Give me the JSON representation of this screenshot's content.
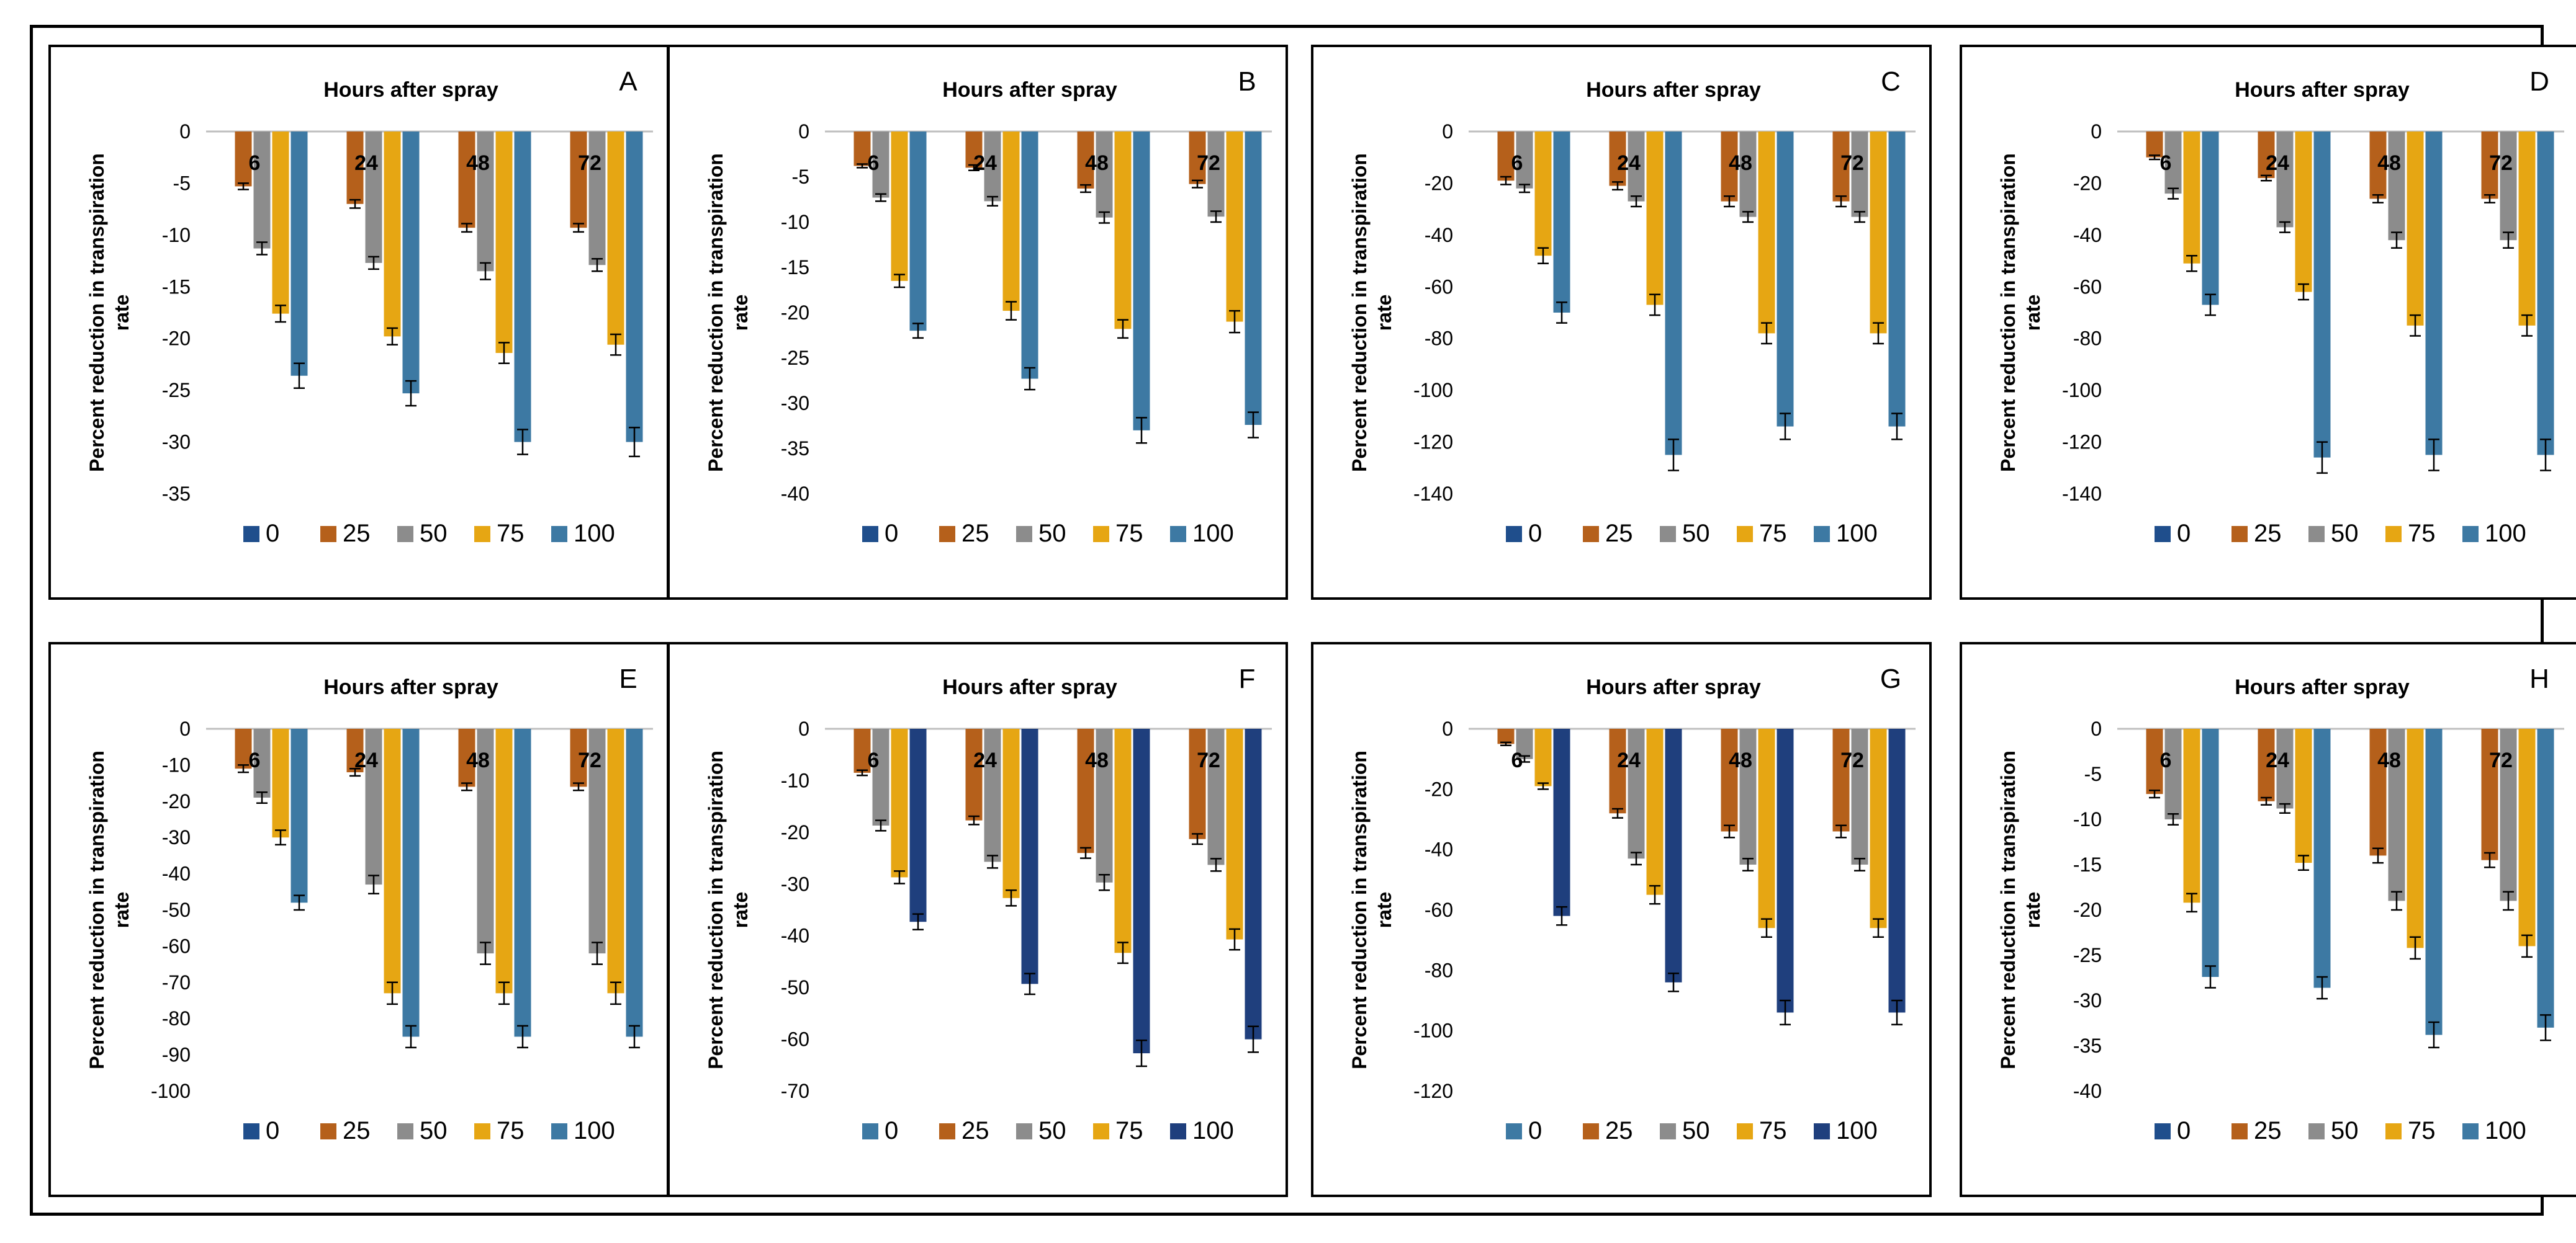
{
  "legend_levels": [
    "0",
    "25",
    "50",
    "75",
    "100"
  ],
  "palettes": {
    "standard": [
      "#1f4e8c",
      "#b5601b",
      "#8c8c8c",
      "#e6a613",
      "#3d79a3"
    ],
    "dark_last": [
      "#3d79a3",
      "#b5601b",
      "#8c8c8c",
      "#e6a613",
      "#1f3f7d"
    ]
  },
  "chart_data": [
    {
      "panel": "A",
      "type": "bar",
      "title": "Hours after spray",
      "xlabel": "",
      "ylabel": "Percent reduction in transpiration rate",
      "categories": [
        "6",
        "24",
        "48",
        "72"
      ],
      "ylim": [
        -35,
        0
      ],
      "yticks": [
        0,
        -5,
        -10,
        -15,
        -20,
        -25,
        -30,
        -35
      ],
      "palette": "standard",
      "series": [
        {
          "name": "0",
          "values": [
            0,
            0,
            0,
            0
          ],
          "errors": [
            0,
            0,
            0,
            0
          ]
        },
        {
          "name": "25",
          "values": [
            -5.3,
            -7,
            -9.3,
            -9.3
          ],
          "errors": [
            0.3,
            0.4,
            0.4,
            0.4
          ]
        },
        {
          "name": "50",
          "values": [
            -11.3,
            -12.7,
            -13.5,
            -12.9
          ],
          "errors": [
            0.6,
            0.6,
            0.8,
            0.6
          ]
        },
        {
          "name": "75",
          "values": [
            -17.6,
            -19.8,
            -21.4,
            -20.6
          ],
          "errors": [
            0.8,
            0.8,
            1.0,
            1.0
          ]
        },
        {
          "name": "100",
          "values": [
            -23.6,
            -25.3,
            -30,
            -30
          ],
          "errors": [
            1.2,
            1.2,
            1.2,
            1.4
          ]
        }
      ]
    },
    {
      "panel": "B",
      "type": "bar",
      "title": "Hours after spray",
      "xlabel": "",
      "ylabel": "Percent reduction in transpiration rate",
      "categories": [
        "6",
        "24",
        "48",
        "72"
      ],
      "ylim": [
        -40,
        0
      ],
      "yticks": [
        0,
        -5,
        -10,
        -15,
        -20,
        -25,
        -30,
        -35,
        -40
      ],
      "palette": "standard",
      "series": [
        {
          "name": "0",
          "values": [
            0,
            0,
            0,
            0
          ],
          "errors": [
            0,
            0,
            0,
            0
          ]
        },
        {
          "name": "25",
          "values": [
            -3.8,
            -4,
            -6.3,
            -5.8
          ],
          "errors": [
            0.2,
            0.3,
            0.4,
            0.4
          ]
        },
        {
          "name": "50",
          "values": [
            -7.3,
            -7.7,
            -9.5,
            -9.4
          ],
          "errors": [
            0.4,
            0.5,
            0.6,
            0.6
          ]
        },
        {
          "name": "75",
          "values": [
            -16.5,
            -19.8,
            -21.8,
            -21
          ],
          "errors": [
            0.7,
            1.0,
            1.0,
            1.2
          ]
        },
        {
          "name": "100",
          "values": [
            -22,
            -27.3,
            -33,
            -32.4
          ],
          "errors": [
            0.8,
            1.2,
            1.4,
            1.4
          ]
        }
      ]
    },
    {
      "panel": "C",
      "type": "bar",
      "title": "Hours after spray",
      "xlabel": "",
      "ylabel": "Percent reduction in transpiration rate",
      "categories": [
        "6",
        "24",
        "48",
        "72"
      ],
      "ylim": [
        -140,
        0
      ],
      "yticks": [
        0,
        -20,
        -40,
        -60,
        -80,
        -100,
        -120,
        -140
      ],
      "palette": "standard",
      "series": [
        {
          "name": "0",
          "values": [
            0,
            0,
            0,
            0
          ],
          "errors": [
            0,
            0,
            0,
            0
          ]
        },
        {
          "name": "25",
          "values": [
            -19,
            -21,
            -27,
            -27
          ],
          "errors": [
            1.5,
            1.5,
            2,
            2
          ]
        },
        {
          "name": "50",
          "values": [
            -22,
            -27,
            -33,
            -33
          ],
          "errors": [
            1.5,
            2,
            2,
            2
          ]
        },
        {
          "name": "75",
          "values": [
            -48,
            -67,
            -78,
            -78
          ],
          "errors": [
            3,
            4,
            4,
            4
          ]
        },
        {
          "name": "100",
          "values": [
            -70,
            -125,
            -114,
            -114
          ],
          "errors": [
            4,
            6,
            5,
            5
          ]
        }
      ]
    },
    {
      "panel": "D",
      "type": "bar",
      "title": "Hours after spray",
      "xlabel": "",
      "ylabel": "Percent reduction in transpiration rate",
      "categories": [
        "6",
        "24",
        "48",
        "72"
      ],
      "ylim": [
        -140,
        0
      ],
      "yticks": [
        0,
        -20,
        -40,
        -60,
        -80,
        -100,
        -120,
        -140
      ],
      "palette": "standard",
      "series": [
        {
          "name": "0",
          "values": [
            0,
            0,
            0,
            0
          ],
          "errors": [
            0,
            0,
            0,
            0
          ]
        },
        {
          "name": "25",
          "values": [
            -10,
            -18,
            -26,
            -26
          ],
          "errors": [
            0.8,
            1,
            1.5,
            1.5
          ]
        },
        {
          "name": "50",
          "values": [
            -24,
            -37,
            -42,
            -42
          ],
          "errors": [
            2,
            2,
            3,
            3
          ]
        },
        {
          "name": "75",
          "values": [
            -51,
            -62,
            -75,
            -75
          ],
          "errors": [
            3,
            3,
            4,
            4
          ]
        },
        {
          "name": "100",
          "values": [
            -67,
            -126,
            -125,
            -125
          ],
          "errors": [
            4,
            6,
            6,
            6
          ]
        }
      ]
    },
    {
      "panel": "E",
      "type": "bar",
      "title": "Hours after spray",
      "xlabel": "",
      "ylabel": "Percent reduction in transpiration rate",
      "categories": [
        "6",
        "24",
        "48",
        "72"
      ],
      "ylim": [
        -100,
        0
      ],
      "yticks": [
        0,
        -10,
        -20,
        -30,
        -40,
        -50,
        -60,
        -70,
        -80,
        -90,
        -100
      ],
      "palette": "standard",
      "series": [
        {
          "name": "0",
          "values": [
            0,
            0,
            0,
            0
          ],
          "errors": [
            0,
            0,
            0,
            0
          ]
        },
        {
          "name": "25",
          "values": [
            -11,
            -12,
            -16,
            -16
          ],
          "errors": [
            1,
            1,
            1,
            1
          ]
        },
        {
          "name": "50",
          "values": [
            -19,
            -43,
            -62,
            -62
          ],
          "errors": [
            1.5,
            2.5,
            3,
            3
          ]
        },
        {
          "name": "75",
          "values": [
            -30,
            -73,
            -73,
            -73
          ],
          "errors": [
            2,
            3,
            3,
            3
          ]
        },
        {
          "name": "100",
          "values": [
            -48,
            -85,
            -85,
            -85
          ],
          "errors": [
            2,
            3,
            3,
            3
          ]
        }
      ]
    },
    {
      "panel": "F",
      "type": "bar",
      "title": "Hours after spray",
      "xlabel": "",
      "ylabel": "Percent reduction in transpiration rate",
      "categories": [
        "6",
        "24",
        "48",
        "72"
      ],
      "ylim": [
        -70,
        0
      ],
      "yticks": [
        0,
        -10,
        -20,
        -30,
        -40,
        -50,
        -60,
        -70
      ],
      "palette": "dark_last",
      "series": [
        {
          "name": "0",
          "values": [
            0,
            0,
            0,
            0
          ],
          "errors": [
            0,
            0,
            0,
            0
          ]
        },
        {
          "name": "25",
          "values": [
            -8.5,
            -17.7,
            -24,
            -21.3
          ],
          "errors": [
            0.5,
            0.8,
            1,
            1
          ]
        },
        {
          "name": "50",
          "values": [
            -18.7,
            -25.7,
            -29.7,
            -26.3
          ],
          "errors": [
            1,
            1.2,
            1.5,
            1.2
          ]
        },
        {
          "name": "75",
          "values": [
            -28.7,
            -32.7,
            -43.3,
            -40.7
          ],
          "errors": [
            1.2,
            1.5,
            2,
            2
          ]
        },
        {
          "name": "100",
          "values": [
            -37.3,
            -49.3,
            -62.7,
            -60
          ],
          "errors": [
            1.5,
            2,
            2.5,
            2.5
          ]
        }
      ]
    },
    {
      "panel": "G",
      "type": "bar",
      "title": "Hours after spray",
      "xlabel": "",
      "ylabel": "Percent reduction in transpiration rate",
      "categories": [
        "6",
        "24",
        "48",
        "72"
      ],
      "ylim": [
        -120,
        0
      ],
      "yticks": [
        0,
        -20,
        -40,
        -60,
        -80,
        -100,
        -120
      ],
      "palette": "dark_last",
      "series": [
        {
          "name": "0",
          "values": [
            0,
            0,
            0,
            0
          ],
          "errors": [
            0,
            0,
            0,
            0
          ]
        },
        {
          "name": "25",
          "values": [
            -5,
            -28,
            -34,
            -34
          ],
          "errors": [
            0.5,
            1.5,
            2,
            2
          ]
        },
        {
          "name": "50",
          "values": [
            -10,
            -43,
            -45,
            -45
          ],
          "errors": [
            1,
            2,
            2,
            2
          ]
        },
        {
          "name": "75",
          "values": [
            -19,
            -55,
            -66,
            -66
          ],
          "errors": [
            1,
            3,
            3,
            3
          ]
        },
        {
          "name": "100",
          "values": [
            -62,
            -84,
            -94,
            -94
          ],
          "errors": [
            3,
            3,
            4,
            4
          ]
        }
      ]
    },
    {
      "panel": "H",
      "type": "bar",
      "title": "Hours after spray",
      "xlabel": "",
      "ylabel": "Percent reduction in transpiration rate",
      "categories": [
        "6",
        "24",
        "48",
        "72"
      ],
      "ylim": [
        -40,
        0
      ],
      "yticks": [
        0,
        -5,
        -10,
        -15,
        -20,
        -25,
        -30,
        -35,
        -40
      ],
      "palette": "standard",
      "series": [
        {
          "name": "0",
          "values": [
            0,
            0,
            0,
            0
          ],
          "errors": [
            0,
            0,
            0,
            0
          ]
        },
        {
          "name": "25",
          "values": [
            -7.2,
            -8,
            -14,
            -14.5
          ],
          "errors": [
            0.4,
            0.4,
            0.8,
            0.8
          ]
        },
        {
          "name": "50",
          "values": [
            -10,
            -8.8,
            -19,
            -19
          ],
          "errors": [
            0.6,
            0.5,
            1,
            1
          ]
        },
        {
          "name": "75",
          "values": [
            -19.2,
            -14.8,
            -24.2,
            -24
          ],
          "errors": [
            1,
            0.8,
            1.2,
            1.2
          ]
        },
        {
          "name": "100",
          "values": [
            -27.4,
            -28.6,
            -33.8,
            -33
          ],
          "errors": [
            1.2,
            1.2,
            1.4,
            1.4
          ]
        }
      ]
    }
  ]
}
